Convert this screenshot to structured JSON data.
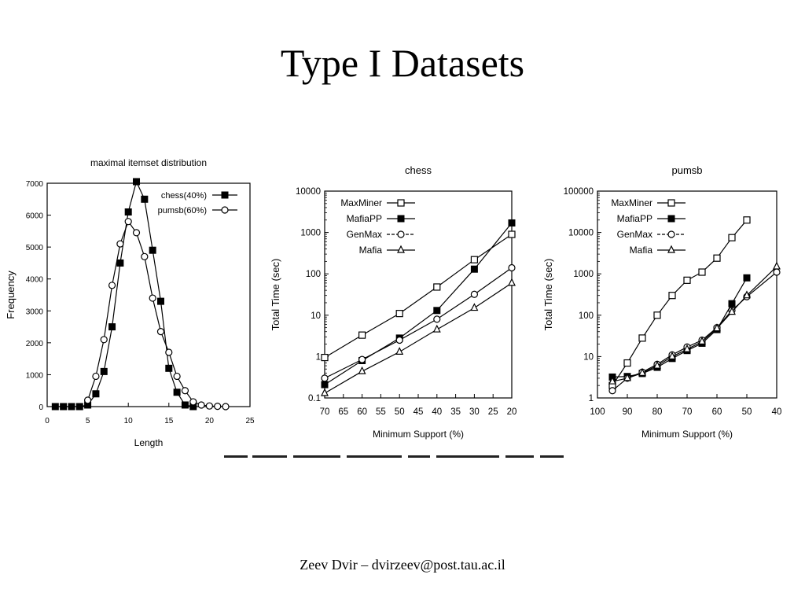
{
  "slide": {
    "title": "Type I Datasets",
    "footer": "Zeev Dvir – dvirzeev@post.tau.ac.il"
  },
  "chart_data": [
    {
      "type": "line",
      "title": "maximal itemset distribution",
      "xlabel": "Length",
      "ylabel": "Frequency",
      "xlim": [
        0,
        25
      ],
      "ylim": [
        0,
        7000
      ],
      "xscale": "linear",
      "yscale": "linear",
      "xticks": [
        0,
        5,
        10,
        15,
        20,
        25
      ],
      "yticks": [
        0,
        1000,
        2000,
        3000,
        4000,
        5000,
        6000,
        7000
      ],
      "legend": "top-right",
      "series": [
        {
          "name": "chess(40%)",
          "marker": "filled-square",
          "x": [
            1,
            2,
            3,
            4,
            5,
            6,
            7,
            8,
            9,
            10,
            11,
            12,
            13,
            14,
            15,
            16,
            17,
            18
          ],
          "y": [
            0,
            0,
            0,
            0,
            50,
            400,
            1100,
            2500,
            4500,
            6100,
            7050,
            6500,
            4900,
            3300,
            1200,
            450,
            50,
            0
          ]
        },
        {
          "name": "pumsb(60%)",
          "marker": "open-circle",
          "x": [
            5,
            6,
            7,
            8,
            9,
            10,
            11,
            12,
            13,
            14,
            15,
            16,
            17,
            18,
            19,
            20,
            21,
            22
          ],
          "y": [
            200,
            950,
            2100,
            3800,
            5100,
            5800,
            5450,
            4700,
            3400,
            2350,
            1700,
            950,
            500,
            150,
            50,
            20,
            10,
            0
          ]
        }
      ]
    },
    {
      "type": "line",
      "title": "chess",
      "xlabel": "Minimum Support (%)",
      "ylabel": "Total Time (sec)",
      "xlim": [
        70,
        20
      ],
      "ylim": [
        0.1,
        10000
      ],
      "xscale": "linear",
      "yscale": "log",
      "xticks": [
        70,
        65,
        60,
        55,
        50,
        45,
        40,
        35,
        30,
        25,
        20
      ],
      "yticks": [
        0.1,
        1,
        10,
        100,
        1000,
        10000
      ],
      "ytick_labels": [
        "0.1",
        "1",
        "10",
        "100",
        "1000",
        "10000"
      ],
      "legend": "top-left",
      "series": [
        {
          "name": "MaxMiner",
          "marker": "open-square",
          "x": [
            70,
            60,
            50,
            40,
            30,
            20
          ],
          "y": [
            0.95,
            3.3,
            11,
            48,
            220,
            900
          ]
        },
        {
          "name": "MafiaPP",
          "marker": "filled-square",
          "x": [
            70,
            60,
            50,
            40,
            30,
            20
          ],
          "y": [
            0.21,
            0.8,
            2.8,
            13,
            130,
            1700
          ]
        },
        {
          "name": "GenMax",
          "marker": "open-circle",
          "x": [
            70,
            60,
            50,
            40,
            30,
            20
          ],
          "y": [
            0.3,
            0.85,
            2.5,
            8,
            32,
            140
          ]
        },
        {
          "name": "Mafia",
          "marker": "open-triangle",
          "x": [
            70,
            60,
            50,
            40,
            30,
            20
          ],
          "y": [
            0.13,
            0.44,
            1.3,
            4.5,
            15,
            60
          ]
        }
      ]
    },
    {
      "type": "line",
      "title": "pumsb",
      "xlabel": "Minimum Support (%)",
      "ylabel": "Total Time (sec)",
      "xlim": [
        100,
        40
      ],
      "ylim": [
        1,
        100000
      ],
      "xscale": "linear",
      "yscale": "log",
      "xticks": [
        100,
        90,
        80,
        70,
        60,
        50,
        40
      ],
      "yticks": [
        1,
        10,
        100,
        1000,
        10000,
        100000
      ],
      "ytick_labels": [
        "1",
        "10",
        "100",
        "1000",
        "10000",
        "100000"
      ],
      "legend": "top-left",
      "series": [
        {
          "name": "MaxMiner",
          "marker": "open-square",
          "x": [
            95,
            90,
            85,
            80,
            75,
            70,
            65,
            60,
            55,
            50
          ],
          "y": [
            2,
            7,
            28,
            100,
            300,
            700,
            1100,
            2400,
            7500,
            20000
          ]
        },
        {
          "name": "MafiaPP",
          "marker": "filled-square",
          "x": [
            95,
            90,
            85,
            80,
            75,
            70,
            65,
            60,
            55,
            50
          ],
          "y": [
            3.2,
            3.3,
            3.9,
            5.5,
            9,
            14,
            21,
            45,
            190,
            800
          ]
        },
        {
          "name": "GenMax",
          "marker": "open-circle",
          "x": [
            95,
            90,
            85,
            80,
            75,
            70,
            65,
            60,
            55,
            50,
            40
          ],
          "y": [
            1.5,
            3,
            4.2,
            6.5,
            11,
            17,
            25,
            50,
            130,
            280,
            1100
          ]
        },
        {
          "name": "Mafia",
          "marker": "open-triangle",
          "x": [
            95,
            90,
            85,
            80,
            75,
            70,
            65,
            60,
            55,
            50,
            40
          ],
          "y": [
            2.5,
            3,
            4,
            6,
            10,
            15,
            23,
            48,
            120,
            300,
            1500
          ]
        }
      ]
    }
  ]
}
